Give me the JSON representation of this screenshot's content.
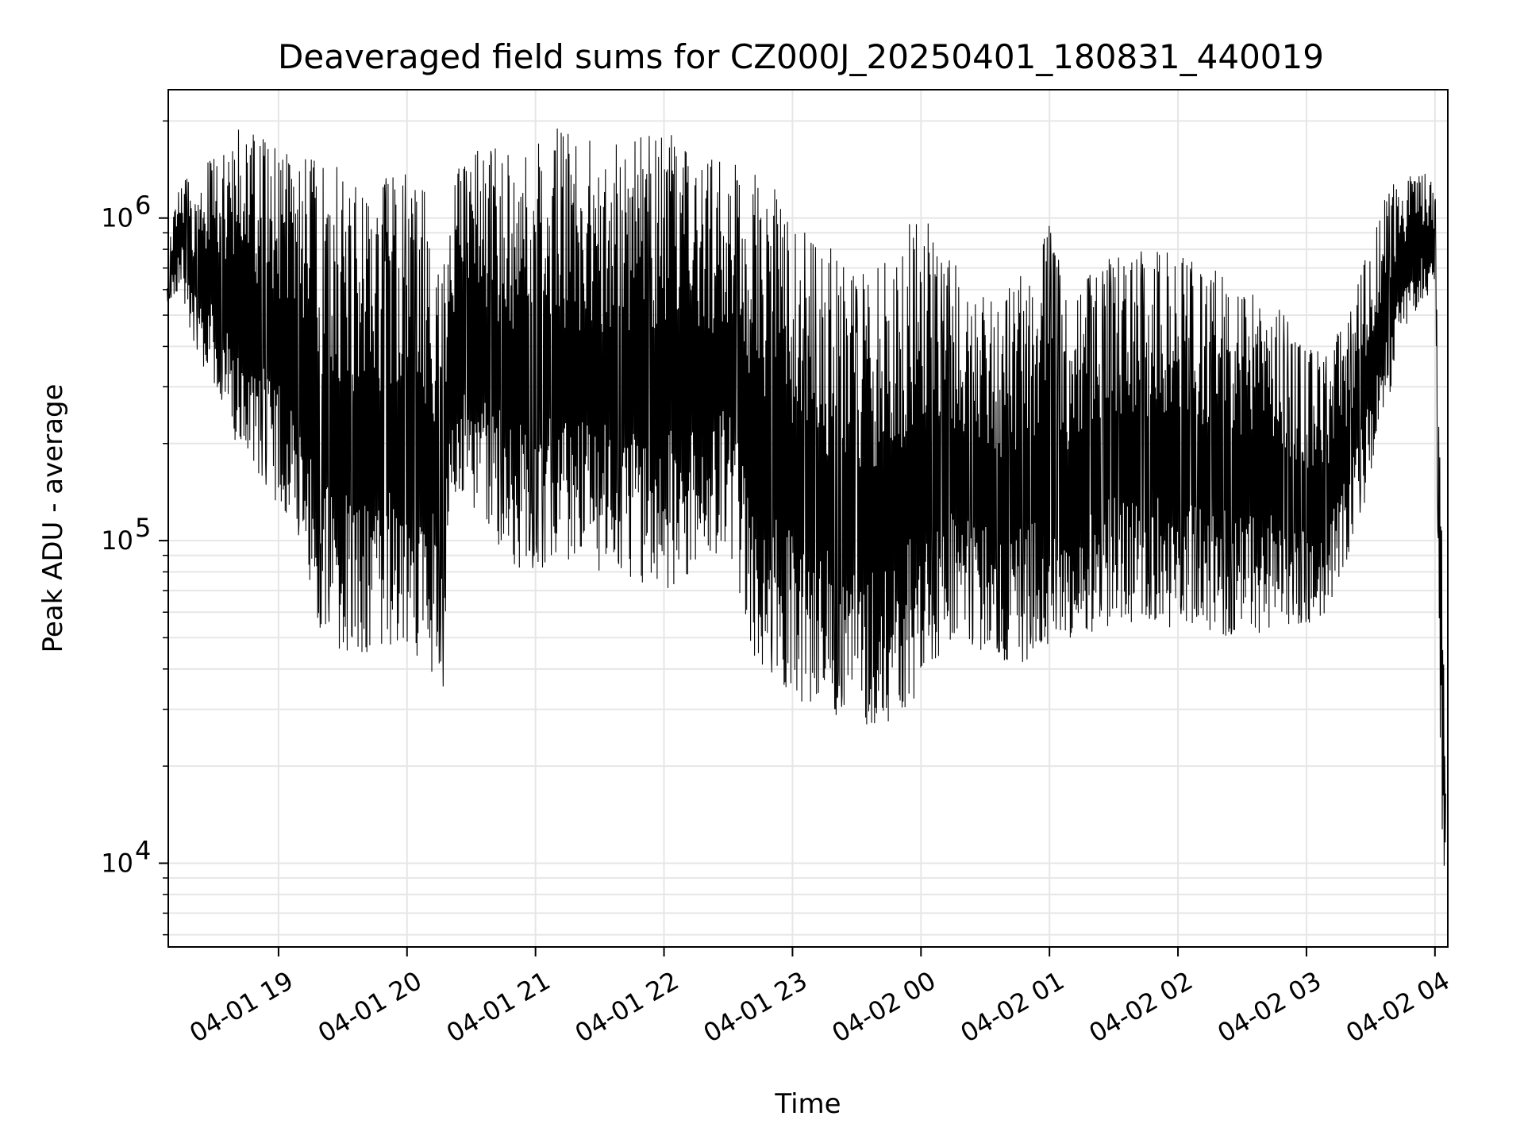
{
  "chart_data": {
    "type": "line",
    "title": "Deaveraged field sums for CZ000J_20250401_180831_440019",
    "xlabel": "Time",
    "ylabel": "Peak ADU - average",
    "yscale": "log",
    "ylim": [
      5500,
      2500000
    ],
    "xlim": [
      "2025-04-01 18:08:31",
      "2025-04-02 04:06:00"
    ],
    "grid": true,
    "line_color": "#000000",
    "x_ticks": [
      {
        "value": "2025-04-01 19:00",
        "label": "04-01 19"
      },
      {
        "value": "2025-04-01 20:00",
        "label": "04-01 20"
      },
      {
        "value": "2025-04-01 21:00",
        "label": "04-01 21"
      },
      {
        "value": "2025-04-01 22:00",
        "label": "04-01 22"
      },
      {
        "value": "2025-04-01 23:00",
        "label": "04-01 23"
      },
      {
        "value": "2025-04-02 00:00",
        "label": "04-02 00"
      },
      {
        "value": "2025-04-02 01:00",
        "label": "04-02 01"
      },
      {
        "value": "2025-04-02 02:00",
        "label": "04-02 02"
      },
      {
        "value": "2025-04-02 03:00",
        "label": "04-02 03"
      },
      {
        "value": "2025-04-02 04:00",
        "label": "04-02 04"
      }
    ],
    "y_ticks": [
      {
        "value": 10000,
        "base": "10",
        "exp": "4"
      },
      {
        "value": 100000,
        "base": "10",
        "exp": "5"
      },
      {
        "value": 1000000,
        "base": "10",
        "exp": "6"
      }
    ],
    "series": [
      {
        "x": [
          "2025-04-01 18:08",
          "2025-04-01 18:15",
          "2025-04-01 18:20",
          "2025-04-01 18:30",
          "2025-04-01 18:40",
          "2025-04-01 18:50",
          "2025-04-01 19:00",
          "2025-04-01 19:10",
          "2025-04-01 19:20",
          "2025-04-01 19:30",
          "2025-04-01 19:40",
          "2025-04-01 19:50",
          "2025-04-01 20:00",
          "2025-04-01 20:10",
          "2025-04-01 20:17",
          "2025-04-01 20:20",
          "2025-04-01 20:30",
          "2025-04-01 20:40",
          "2025-04-01 20:50",
          "2025-04-01 21:00",
          "2025-04-01 21:10",
          "2025-04-01 21:20",
          "2025-04-01 21:30",
          "2025-04-01 21:40",
          "2025-04-01 21:50",
          "2025-04-01 22:00",
          "2025-04-01 22:10",
          "2025-04-01 22:20",
          "2025-04-01 22:30",
          "2025-04-01 22:40",
          "2025-04-01 22:50",
          "2025-04-01 23:00",
          "2025-04-01 23:10",
          "2025-04-01 23:20",
          "2025-04-01 23:30",
          "2025-04-01 23:40",
          "2025-04-01 23:50",
          "2025-04-02 00:00",
          "2025-04-02 00:10",
          "2025-04-02 00:20",
          "2025-04-02 00:30",
          "2025-04-02 00:40",
          "2025-04-02 00:50",
          "2025-04-02 01:00",
          "2025-04-02 01:10",
          "2025-04-02 01:20",
          "2025-04-02 01:30",
          "2025-04-02 01:40",
          "2025-04-02 01:50",
          "2025-04-02 02:00",
          "2025-04-02 02:10",
          "2025-04-02 02:20",
          "2025-04-02 02:30",
          "2025-04-02 02:40",
          "2025-04-02 02:50",
          "2025-04-02 03:00",
          "2025-04-02 03:10",
          "2025-04-02 03:20",
          "2025-04-02 03:30",
          "2025-04-02 03:40",
          "2025-04-02 03:50",
          "2025-04-02 04:00",
          "2025-04-02 04:03",
          "2025-04-02 04:05"
        ],
        "low": [
          550000,
          600000,
          400000,
          300000,
          200000,
          150000,
          120000,
          100000,
          50000,
          45000,
          42000,
          45000,
          45000,
          40000,
          35000,
          150000,
          120000,
          100000,
          80000,
          80000,
          80000,
          80000,
          80000,
          80000,
          70000,
          70000,
          75000,
          85000,
          100000,
          45000,
          35000,
          33000,
          30000,
          28000,
          27000,
          26000,
          27000,
          35000,
          45000,
          48000,
          45000,
          40000,
          42000,
          45000,
          50000,
          52000,
          55000,
          55000,
          52000,
          55000,
          52000,
          50000,
          50000,
          52000,
          55000,
          55000,
          60000,
          90000,
          150000,
          300000,
          500000,
          600000,
          12000,
          8000
        ],
        "high": [
          800000,
          1500000,
          1200000,
          1700000,
          1900000,
          1800000,
          1800000,
          1600000,
          1500000,
          1500000,
          1200000,
          1400000,
          1400000,
          1200000,
          700000,
          1400000,
          1600000,
          1700000,
          1600000,
          1700000,
          1900000,
          1800000,
          1700000,
          1700000,
          1800000,
          2000000,
          1700000,
          1600000,
          1500000,
          1400000,
          1300000,
          1000000,
          900000,
          800000,
          700000,
          700000,
          800000,
          1200000,
          800000,
          700000,
          600000,
          600000,
          700000,
          1000000,
          500000,
          700000,
          800000,
          800000,
          800000,
          800000,
          700000,
          700000,
          600000,
          600000,
          500000,
          400000,
          400000,
          500000,
          900000,
          1300000,
          1500000,
          1300000,
          300000,
          18000
        ]
      }
    ]
  }
}
